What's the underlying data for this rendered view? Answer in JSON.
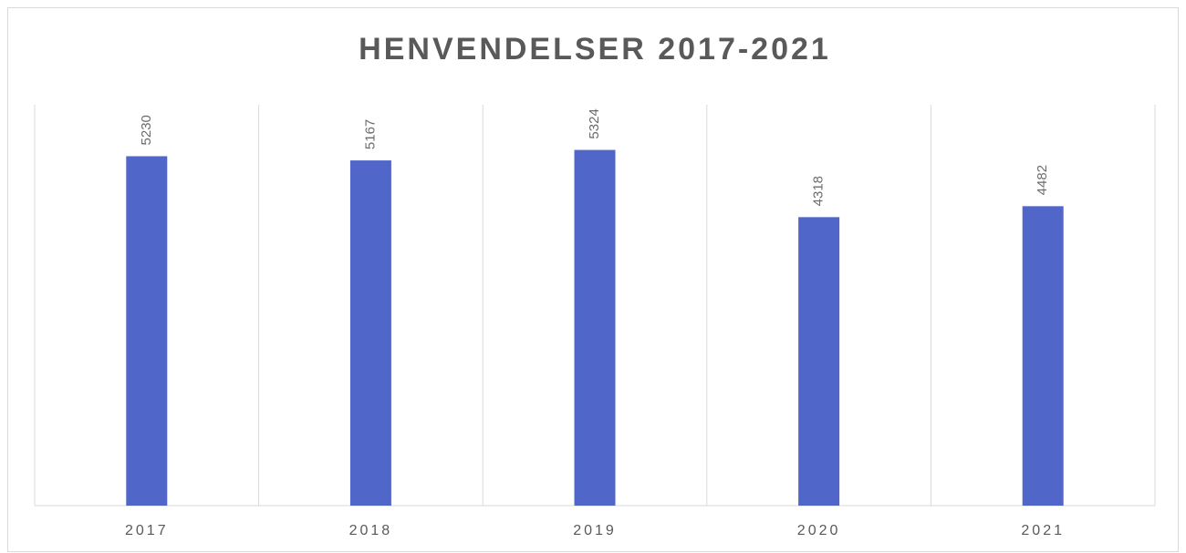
{
  "chart_data": {
    "type": "bar",
    "title": "HENVENDELSER 2017-2021",
    "categories": [
      "2017",
      "2018",
      "2019",
      "2020",
      "2021"
    ],
    "values": [
      5230,
      5167,
      5324,
      4318,
      4482
    ],
    "color": "#5066c9",
    "ylim": [
      0,
      6000
    ]
  }
}
